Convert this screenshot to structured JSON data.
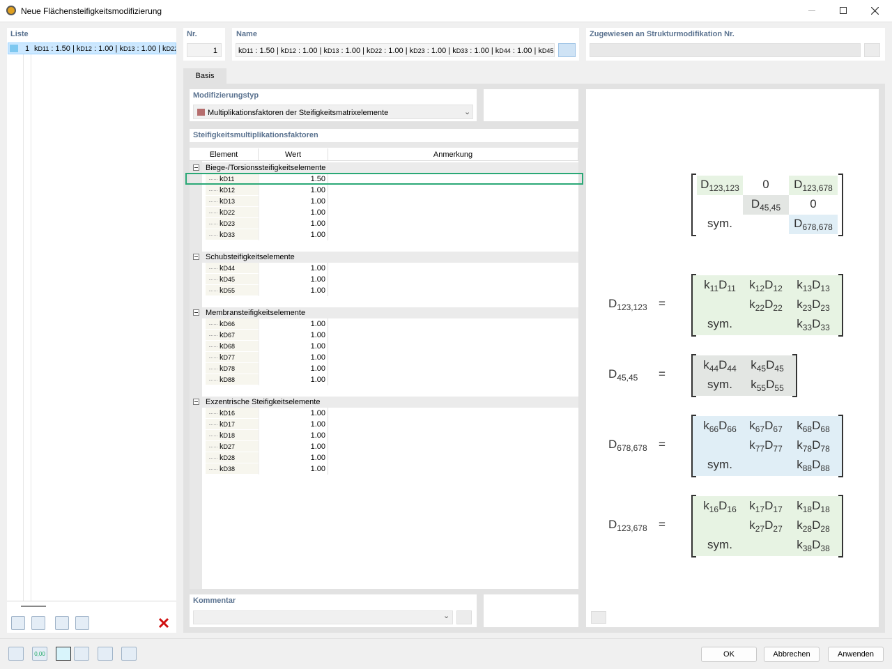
{
  "window": {
    "title": "Neue Flächensteifigkeitsmodifizierung"
  },
  "list": {
    "label": "Liste",
    "items": [
      {
        "nr": 1,
        "text": "kD11 : 1.50 | kD12 : 1.00 | kD13 : 1.00 | kD22"
      }
    ]
  },
  "header": {
    "nr_label": "Nr.",
    "nr": 1,
    "name_label": "Name",
    "name": "kD11 : 1.50 | kD12 : 1.00 | kD13 : 1.00 | kD22 : 1.00 | kD23 : 1.00 | kD33 : 1.00 | kD44 : 1.00 | kD45",
    "assigned_label": "Zugewiesen an Strukturmodifikation Nr."
  },
  "tabs": [
    "Basis"
  ],
  "modification": {
    "label": "Modifizierungstyp",
    "value": "Multiplikationsfaktoren der Steifigkeitsmatrixelemente"
  },
  "factors": {
    "label": "Steifigkeitsmultiplikationsfaktoren",
    "columns": [
      "Element",
      "Wert",
      "Anmerkung"
    ],
    "groups": [
      {
        "name": "Biege-/Torsionssteifigkeitselemente",
        "items": [
          {
            "element": "kD11",
            "value": "1.50"
          },
          {
            "element": "kD12",
            "value": "1.00"
          },
          {
            "element": "kD13",
            "value": "1.00"
          },
          {
            "element": "kD22",
            "value": "1.00"
          },
          {
            "element": "kD23",
            "value": "1.00"
          },
          {
            "element": "kD33",
            "value": "1.00"
          }
        ]
      },
      {
        "name": "Schubsteifigkeitselemente",
        "items": [
          {
            "element": "kD44",
            "value": "1.00"
          },
          {
            "element": "kD45",
            "value": "1.00"
          },
          {
            "element": "kD55",
            "value": "1.00"
          }
        ]
      },
      {
        "name": "Membransteifigkeitselemente",
        "items": [
          {
            "element": "kD66",
            "value": "1.00"
          },
          {
            "element": "kD67",
            "value": "1.00"
          },
          {
            "element": "kD68",
            "value": "1.00"
          },
          {
            "element": "kD77",
            "value": "1.00"
          },
          {
            "element": "kD78",
            "value": "1.00"
          },
          {
            "element": "kD88",
            "value": "1.00"
          }
        ]
      },
      {
        "name": "Exzentrische Steifigkeitselemente",
        "items": [
          {
            "element": "kD16",
            "value": "1.00"
          },
          {
            "element": "kD17",
            "value": "1.00"
          },
          {
            "element": "kD18",
            "value": "1.00"
          },
          {
            "element": "kD27",
            "value": "1.00"
          },
          {
            "element": "kD28",
            "value": "1.00"
          },
          {
            "element": "kD38",
            "value": "1.00"
          }
        ]
      }
    ]
  },
  "matrix": {
    "rows": [
      [
        "D123,123",
        "0",
        "D123,678"
      ],
      [
        "D45,45",
        "0"
      ],
      [
        "sym.",
        "D678,678"
      ]
    ]
  },
  "equations": [
    {
      "lhs": "D123,123",
      "equals": "=",
      "rows": [
        [
          "k11D11",
          "k12D12",
          "k13D13"
        ],
        [
          "k22D22",
          "k23D23"
        ],
        [
          "sym.",
          "k33D33"
        ]
      ]
    },
    {
      "lhs": "D45,45",
      "equals": "=",
      "rows": [
        [
          "k44D44",
          "k45D45"
        ],
        [
          "sym.",
          "k55D55"
        ]
      ]
    },
    {
      "lhs": "D678,678",
      "equals": "=",
      "rows": [
        [
          "k66D66",
          "k67D67",
          "k68D68"
        ],
        [
          "k77D77",
          "k78D78"
        ],
        [
          "sym.",
          "k88D88"
        ]
      ]
    },
    {
      "lhs": "D123,678",
      "equals": "=",
      "rows": [
        [
          "k16D16",
          "k17D17",
          "k18D18"
        ],
        [
          "k27D27",
          "k28D28"
        ],
        [
          "sym.",
          "k38D38"
        ]
      ]
    }
  ],
  "comment": {
    "label": "Kommentar"
  },
  "toolbar": {
    "units_icon": "0,00"
  },
  "buttons": [
    "OK",
    "Abbrechen",
    "Anwenden"
  ]
}
